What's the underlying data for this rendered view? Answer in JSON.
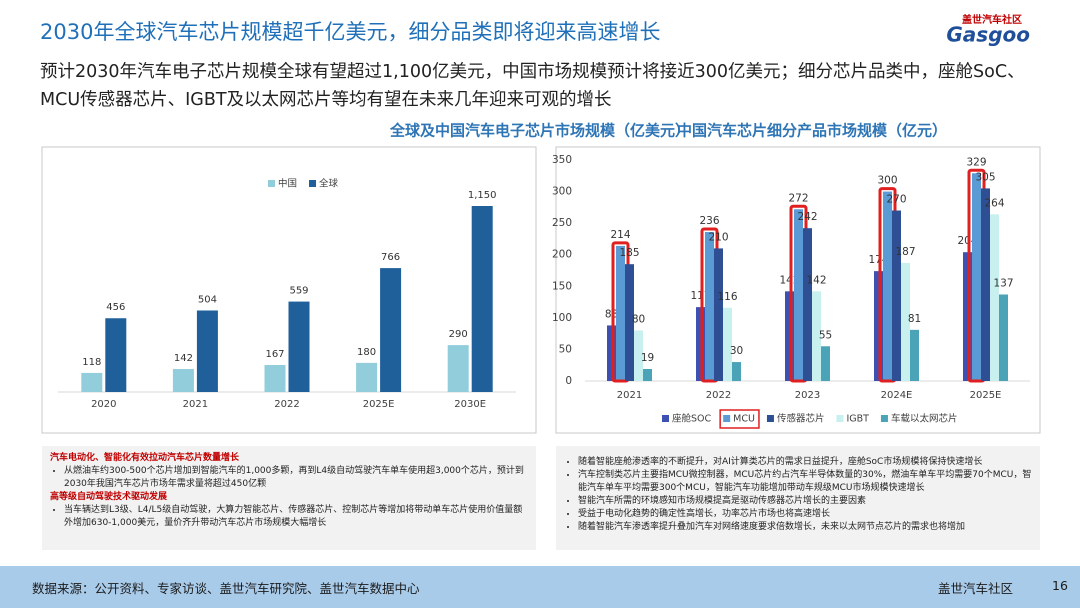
{
  "header": {
    "title": "2030年全球汽车芯片规模超千亿美元，细分品类即将迎来高速增长",
    "logo_cn": "盖世汽车社区",
    "logo_en": "Gasgoo"
  },
  "subtitle": "预计2030年汽车电子芯片规模全球有望超过1,100亿美元，中国市场规模预计将接近300亿美元；细分芯片品类中，座舱SoC、MCU传感器芯片、IGBT及以太网芯片等均有望在未来几年迎来可观的增长",
  "chart_data": [
    {
      "type": "bar",
      "title": "全球及中国汽车电子芯片市场规模（亿美元）",
      "categories": [
        "2020",
        "2021",
        "2022",
        "2025E",
        "2030E"
      ],
      "series": [
        {
          "name": "中国",
          "color": "#92cddc",
          "values": [
            118,
            142,
            167,
            180,
            290
          ]
        },
        {
          "name": "全球",
          "color": "#1f5f9a",
          "values": [
            456,
            504,
            559,
            766,
            1150
          ],
          "value_labels": [
            "456",
            "504",
            "559",
            "766",
            "1,150"
          ]
        }
      ],
      "legend": "top"
    },
    {
      "type": "bar",
      "title": "中国汽车芯片细分产品市场规模（亿元）",
      "categories": [
        "2021",
        "2022",
        "2023",
        "2024E",
        "2025E"
      ],
      "series": [
        {
          "name": "座舱SOC",
          "color": "#3f51b0",
          "values": [
            88,
            117,
            142,
            174,
            204
          ]
        },
        {
          "name": "MCU",
          "color": "#5b9bd5",
          "values": [
            214,
            236,
            272,
            300,
            329
          ]
        },
        {
          "name": "传感器芯片",
          "color": "#2f4f94",
          "values": [
            185,
            210,
            242,
            270,
            305
          ]
        },
        {
          "name": "IGBT",
          "color": "#c8f0ee",
          "values": [
            80,
            116,
            142,
            187,
            264
          ]
        },
        {
          "name": "车载以太网芯片",
          "color": "#4aa3b6",
          "values": [
            19,
            30,
            55,
            81,
            137
          ]
        }
      ],
      "ylim": [
        0,
        350
      ],
      "yticks": [
        0,
        50,
        100,
        150,
        200,
        250,
        300,
        350
      ],
      "legend": "bottom",
      "highlight_series": 1
    }
  ],
  "notes_left": {
    "items": [
      {
        "heading": "汽车电动化、智能化有效拉动汽车芯片数量增长",
        "bullets": [
          "从燃油车约300-500个芯片增加到智能汽车的1,000多颗，再到L4级自动驾驶汽车单车使用超3,000个芯片，预计到2030年我国汽车芯片市场年需求量将超过450亿颗"
        ]
      },
      {
        "heading": "高等级自动驾驶技术驱动发展",
        "bullets": [
          "当车辆达到L3级、L4/L5级自动驾驶，大算力智能芯片、传感器芯片、控制芯片等增加将带动单车芯片使用价值量额外增加630-1,000美元，量价齐升带动汽车芯片市场规模大幅增长"
        ]
      }
    ]
  },
  "notes_right": {
    "bullets": [
      "随着智能座舱渗透率的不断提升，对AI计算类芯片的需求日益提升，座舱SoC市场规模将保持快速增长",
      "汽车控制类芯片主要指MCU微控制器，MCU芯片约占汽车半导体数量的30%，燃油车单车平均需要70个MCU，智能汽车单车平均需要300个MCU，智能汽车功能增加带动车规级MCU市场规模快速增长",
      "智能汽车所需的环境感知市场规模提高是驱动传感器芯片增长的主要因素",
      "受益于电动化趋势的确定性高增长，功率芯片市场也将高速增长",
      "随着智能汽车渗透率提升叠加汽车对网络速度要求倍数增长，未来以太网节点芯片的需求也将增加"
    ]
  },
  "footer": {
    "source": "数据来源：公开资料、专家访谈、盖世汽车研究院、盖世汽车数据中心",
    "brand": "盖世汽车社区",
    "page": "16"
  }
}
